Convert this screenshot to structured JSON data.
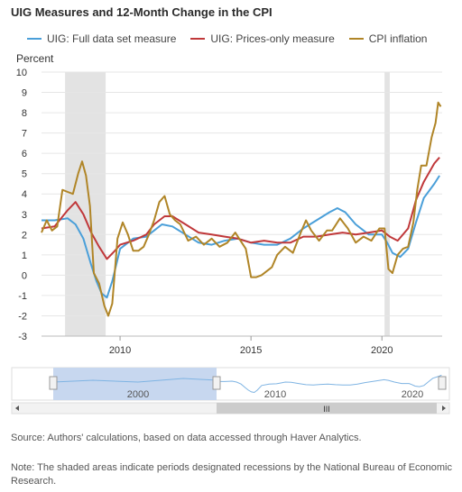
{
  "title": "UIG Measures and 12-Month Change in the CPI",
  "legend": [
    {
      "label": "UIG: Full data set measure",
      "color": "#4a9fd9"
    },
    {
      "label": "UIG: Prices-only measure",
      "color": "#c0383a"
    },
    {
      "label": "CPI inflation",
      "color": "#b08527"
    }
  ],
  "yaxis_title": "Percent",
  "source": "Source: Authors' calculations, based on data accessed through Haver Analytics.",
  "note": "Note: The shaded areas indicate periods designated recessions by the National Bureau of Economic Research.",
  "navigator": {
    "tick_labels": [
      "2000",
      "2010",
      "2020"
    ],
    "scrollbar_grip": "III"
  },
  "chart_data": {
    "type": "line",
    "title": "UIG Measures and 12-Month Change in the CPI",
    "ylabel": "Percent",
    "xlabel": "",
    "xlim": [
      2007.0,
      2022.3
    ],
    "ylim": [
      -3,
      10
    ],
    "yticks": [
      -3,
      -2,
      -1,
      0,
      1,
      2,
      3,
      4,
      5,
      6,
      7,
      8,
      9,
      10
    ],
    "xticks": [
      2010,
      2015,
      2020
    ],
    "grid": "horizontal",
    "legend_position": "top",
    "recessions": [
      [
        2007.9,
        2009.45
      ],
      [
        2020.1,
        2020.3
      ]
    ],
    "series": [
      {
        "name": "UIG: Full data set measure",
        "color": "#4a9fd9",
        "x": [
          2007.0,
          2007.5,
          2008.0,
          2008.3,
          2008.6,
          2008.9,
          2009.1,
          2009.3,
          2009.5,
          2009.7,
          2010.0,
          2010.5,
          2011.0,
          2011.3,
          2011.6,
          2012.0,
          2012.5,
          2013.0,
          2013.5,
          2014.0,
          2014.5,
          2015.0,
          2015.5,
          2016.0,
          2016.5,
          2017.0,
          2017.5,
          2018.0,
          2018.3,
          2018.6,
          2019.0,
          2019.5,
          2020.0,
          2020.2,
          2020.4,
          2020.7,
          2021.0,
          2021.3,
          2021.6,
          2022.0,
          2022.2
        ],
        "y": [
          2.7,
          2.7,
          2.8,
          2.5,
          1.8,
          0.5,
          -0.3,
          -0.9,
          -1.1,
          -0.3,
          1.3,
          1.8,
          1.9,
          2.2,
          2.5,
          2.4,
          2.0,
          1.6,
          1.5,
          1.7,
          1.8,
          1.6,
          1.5,
          1.5,
          1.8,
          2.3,
          2.7,
          3.1,
          3.3,
          3.1,
          2.5,
          2.0,
          2.0,
          1.6,
          1.1,
          0.9,
          1.3,
          2.6,
          3.8,
          4.5,
          4.9
        ]
      },
      {
        "name": "UIG: Prices-only measure",
        "color": "#c0383a",
        "x": [
          2007.0,
          2007.5,
          2008.0,
          2008.3,
          2008.6,
          2008.9,
          2009.2,
          2009.5,
          2009.8,
          2010.0,
          2010.5,
          2011.0,
          2011.3,
          2011.7,
          2012.0,
          2012.5,
          2013.0,
          2013.5,
          2014.0,
          2014.5,
          2015.0,
          2015.5,
          2016.0,
          2016.5,
          2017.0,
          2017.5,
          2018.0,
          2018.5,
          2019.0,
          2019.5,
          2020.0,
          2020.3,
          2020.6,
          2021.0,
          2021.3,
          2021.6,
          2022.0,
          2022.2
        ],
        "y": [
          2.3,
          2.4,
          3.2,
          3.6,
          3.0,
          2.1,
          1.4,
          0.8,
          1.2,
          1.5,
          1.7,
          2.0,
          2.5,
          2.9,
          2.9,
          2.5,
          2.1,
          2.0,
          1.9,
          1.8,
          1.6,
          1.7,
          1.6,
          1.6,
          1.9,
          1.9,
          2.0,
          2.1,
          2.0,
          2.1,
          2.2,
          1.9,
          1.7,
          2.3,
          3.7,
          4.6,
          5.5,
          5.8
        ]
      },
      {
        "name": "CPI inflation",
        "color": "#b08527",
        "x": [
          2007.0,
          2007.2,
          2007.4,
          2007.6,
          2007.8,
          2008.0,
          2008.2,
          2008.4,
          2008.55,
          2008.7,
          2008.85,
          2009.0,
          2009.2,
          2009.4,
          2009.55,
          2009.7,
          2009.9,
          2010.1,
          2010.3,
          2010.5,
          2010.7,
          2010.9,
          2011.1,
          2011.3,
          2011.5,
          2011.7,
          2011.9,
          2012.1,
          2012.3,
          2012.6,
          2012.9,
          2013.2,
          2013.5,
          2013.8,
          2014.1,
          2014.4,
          2014.6,
          2014.8,
          2015.0,
          2015.2,
          2015.4,
          2015.6,
          2015.8,
          2016.0,
          2016.3,
          2016.6,
          2016.9,
          2017.1,
          2017.3,
          2017.6,
          2017.9,
          2018.1,
          2018.4,
          2018.7,
          2019.0,
          2019.3,
          2019.6,
          2019.9,
          2020.1,
          2020.25,
          2020.4,
          2020.6,
          2020.8,
          2021.0,
          2021.2,
          2021.35,
          2021.5,
          2021.7,
          2021.9,
          2022.05,
          2022.15,
          2022.25
        ],
        "y": [
          2.1,
          2.7,
          2.2,
          2.4,
          4.2,
          4.1,
          4.0,
          5.0,
          5.6,
          4.9,
          3.4,
          0.1,
          -0.4,
          -1.5,
          -2.0,
          -1.4,
          1.8,
          2.6,
          2.0,
          1.2,
          1.2,
          1.4,
          2.0,
          2.7,
          3.6,
          3.9,
          3.0,
          2.7,
          2.5,
          1.7,
          1.9,
          1.5,
          1.8,
          1.4,
          1.6,
          2.1,
          1.7,
          1.3,
          -0.1,
          -0.1,
          0.0,
          0.2,
          0.4,
          1.0,
          1.4,
          1.1,
          2.1,
          2.7,
          2.2,
          1.7,
          2.2,
          2.2,
          2.8,
          2.3,
          1.6,
          1.9,
          1.7,
          2.3,
          2.3,
          0.3,
          0.1,
          1.0,
          1.3,
          1.4,
          2.6,
          4.2,
          5.4,
          5.4,
          6.8,
          7.5,
          8.5,
          8.3
        ]
      }
    ]
  }
}
